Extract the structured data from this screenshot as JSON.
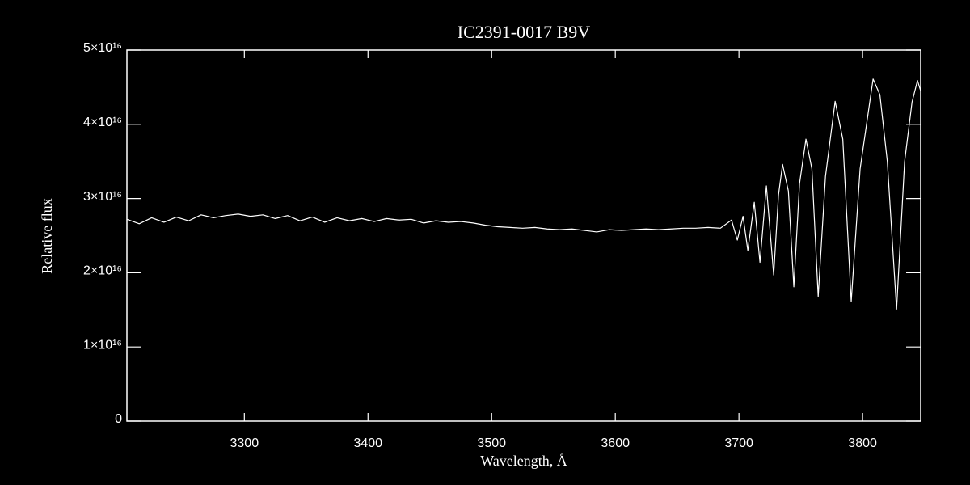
{
  "chart_data": {
    "type": "line",
    "title": "IC2391-0017  B9V",
    "x_label": "Wavelength, Å",
    "y_label": "Relative flux",
    "color": "#ffffff",
    "xlim": [
      3205,
      3847
    ],
    "ylim": [
      0,
      5e+16
    ],
    "xticks": [
      3300,
      3400,
      3500,
      3600,
      3700,
      3800
    ],
    "yticks": [
      0,
      {
        "value": 1e+16,
        "label": "1×10¹⁶"
      },
      {
        "value": 2e+16,
        "label": "2×10¹⁶"
      },
      {
        "value": 3e+16,
        "label": "3×10¹⁶"
      },
      {
        "value": 4e+16,
        "label": "4×10¹⁶"
      },
      {
        "value": 5e+16,
        "label": "5×10¹⁶"
      }
    ],
    "x": [
      3205,
      3215,
      3225,
      3235,
      3245,
      3255,
      3265,
      3275,
      3285,
      3295,
      3305,
      3315,
      3325,
      3335,
      3345,
      3355,
      3365,
      3375,
      3385,
      3395,
      3405,
      3415,
      3425,
      3435,
      3445,
      3455,
      3465,
      3475,
      3485,
      3495,
      3505,
      3515,
      3525,
      3535,
      3545,
      3555,
      3565,
      3575,
      3585,
      3595,
      3605,
      3615,
      3625,
      3635,
      3645,
      3655,
      3665,
      3675,
      3685,
      3694,
      3698.7,
      3703.3,
      3707.2,
      3712.4,
      3717,
      3722.2,
      3728.1,
      3732,
      3735.3,
      3740,
      3744.4,
      3749,
      3754.2,
      3759,
      3764.1,
      3770,
      3777.8,
      3784,
      3790.8,
      3798,
      3808.5,
      3814,
      3820,
      3827.5,
      3834,
      3840,
      3844.4,
      3847
    ],
    "values": [
      2.72e+16,
      2.66e+16,
      2.74e+16,
      2.68e+16,
      2.75e+16,
      2.7e+16,
      2.78e+16,
      2.74e+16,
      2.77e+16,
      2.79e+16,
      2.76e+16,
      2.78e+16,
      2.73e+16,
      2.77e+16,
      2.7e+16,
      2.75e+16,
      2.68e+16,
      2.74e+16,
      2.7e+16,
      2.73e+16,
      2.69e+16,
      2.73e+16,
      2.71e+16,
      2.72e+16,
      2.67e+16,
      2.7e+16,
      2.68e+16,
      2.69e+16,
      2.67e+16,
      2.64e+16,
      2.62e+16,
      2.61e+16,
      2.6e+16,
      2.61e+16,
      2.59e+16,
      2.58e+16,
      2.59e+16,
      2.57e+16,
      2.55e+16,
      2.58e+16,
      2.57e+16,
      2.58e+16,
      2.59e+16,
      2.58e+16,
      2.59e+16,
      2.6e+16,
      2.6e+16,
      2.61e+16,
      2.6e+16,
      2.71e+16,
      2.44e+16,
      2.76e+16,
      2.3e+16,
      2.95e+16,
      2.14e+16,
      3.17e+16,
      1.97e+16,
      3.05e+16,
      3.46e+16,
      3.1e+16,
      1.81e+16,
      3.2e+16,
      3.8e+16,
      3.4e+16,
      1.68e+16,
      3.3e+16,
      4.31e+16,
      3.8e+16,
      1.61e+16,
      3.4e+16,
      4.61e+16,
      4.4e+16,
      3.5e+16,
      1.51e+16,
      3.5e+16,
      4.3e+16,
      4.59e+16,
      4.45e+16
    ]
  }
}
